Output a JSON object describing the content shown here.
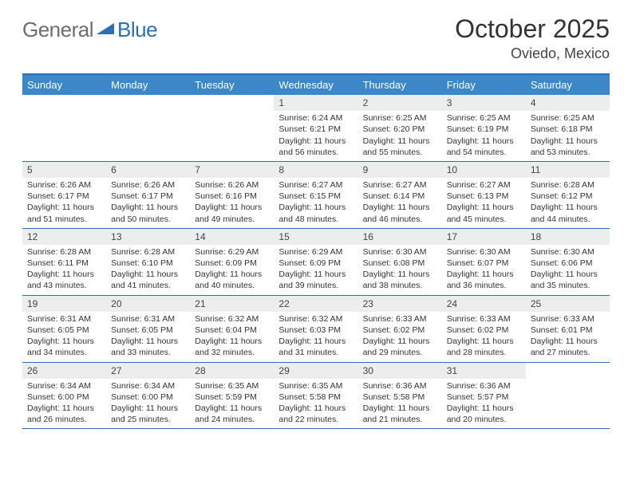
{
  "logo": {
    "text1": "General",
    "text2": "Blue"
  },
  "title": "October 2025",
  "location": "Oviedo, Mexico",
  "colors": {
    "header_bg": "#3b87c8",
    "border": "#2d6fb7",
    "daynum_bg": "#eceded",
    "logo_gray": "#6d6d6d",
    "logo_blue": "#2d6fb7"
  },
  "day_names": [
    "Sunday",
    "Monday",
    "Tuesday",
    "Wednesday",
    "Thursday",
    "Friday",
    "Saturday"
  ],
  "weeks": [
    [
      {
        "n": "",
        "l1": "",
        "l2": "",
        "l3": ""
      },
      {
        "n": "",
        "l1": "",
        "l2": "",
        "l3": ""
      },
      {
        "n": "",
        "l1": "",
        "l2": "",
        "l3": ""
      },
      {
        "n": "1",
        "l1": "Sunrise: 6:24 AM",
        "l2": "Sunset: 6:21 PM",
        "l3": "Daylight: 11 hours and 56 minutes."
      },
      {
        "n": "2",
        "l1": "Sunrise: 6:25 AM",
        "l2": "Sunset: 6:20 PM",
        "l3": "Daylight: 11 hours and 55 minutes."
      },
      {
        "n": "3",
        "l1": "Sunrise: 6:25 AM",
        "l2": "Sunset: 6:19 PM",
        "l3": "Daylight: 11 hours and 54 minutes."
      },
      {
        "n": "4",
        "l1": "Sunrise: 6:25 AM",
        "l2": "Sunset: 6:18 PM",
        "l3": "Daylight: 11 hours and 53 minutes."
      }
    ],
    [
      {
        "n": "5",
        "l1": "Sunrise: 6:26 AM",
        "l2": "Sunset: 6:17 PM",
        "l3": "Daylight: 11 hours and 51 minutes."
      },
      {
        "n": "6",
        "l1": "Sunrise: 6:26 AM",
        "l2": "Sunset: 6:17 PM",
        "l3": "Daylight: 11 hours and 50 minutes."
      },
      {
        "n": "7",
        "l1": "Sunrise: 6:26 AM",
        "l2": "Sunset: 6:16 PM",
        "l3": "Daylight: 11 hours and 49 minutes."
      },
      {
        "n": "8",
        "l1": "Sunrise: 6:27 AM",
        "l2": "Sunset: 6:15 PM",
        "l3": "Daylight: 11 hours and 48 minutes."
      },
      {
        "n": "9",
        "l1": "Sunrise: 6:27 AM",
        "l2": "Sunset: 6:14 PM",
        "l3": "Daylight: 11 hours and 46 minutes."
      },
      {
        "n": "10",
        "l1": "Sunrise: 6:27 AM",
        "l2": "Sunset: 6:13 PM",
        "l3": "Daylight: 11 hours and 45 minutes."
      },
      {
        "n": "11",
        "l1": "Sunrise: 6:28 AM",
        "l2": "Sunset: 6:12 PM",
        "l3": "Daylight: 11 hours and 44 minutes."
      }
    ],
    [
      {
        "n": "12",
        "l1": "Sunrise: 6:28 AM",
        "l2": "Sunset: 6:11 PM",
        "l3": "Daylight: 11 hours and 43 minutes."
      },
      {
        "n": "13",
        "l1": "Sunrise: 6:28 AM",
        "l2": "Sunset: 6:10 PM",
        "l3": "Daylight: 11 hours and 41 minutes."
      },
      {
        "n": "14",
        "l1": "Sunrise: 6:29 AM",
        "l2": "Sunset: 6:09 PM",
        "l3": "Daylight: 11 hours and 40 minutes."
      },
      {
        "n": "15",
        "l1": "Sunrise: 6:29 AM",
        "l2": "Sunset: 6:09 PM",
        "l3": "Daylight: 11 hours and 39 minutes."
      },
      {
        "n": "16",
        "l1": "Sunrise: 6:30 AM",
        "l2": "Sunset: 6:08 PM",
        "l3": "Daylight: 11 hours and 38 minutes."
      },
      {
        "n": "17",
        "l1": "Sunrise: 6:30 AM",
        "l2": "Sunset: 6:07 PM",
        "l3": "Daylight: 11 hours and 36 minutes."
      },
      {
        "n": "18",
        "l1": "Sunrise: 6:30 AM",
        "l2": "Sunset: 6:06 PM",
        "l3": "Daylight: 11 hours and 35 minutes."
      }
    ],
    [
      {
        "n": "19",
        "l1": "Sunrise: 6:31 AM",
        "l2": "Sunset: 6:05 PM",
        "l3": "Daylight: 11 hours and 34 minutes."
      },
      {
        "n": "20",
        "l1": "Sunrise: 6:31 AM",
        "l2": "Sunset: 6:05 PM",
        "l3": "Daylight: 11 hours and 33 minutes."
      },
      {
        "n": "21",
        "l1": "Sunrise: 6:32 AM",
        "l2": "Sunset: 6:04 PM",
        "l3": "Daylight: 11 hours and 32 minutes."
      },
      {
        "n": "22",
        "l1": "Sunrise: 6:32 AM",
        "l2": "Sunset: 6:03 PM",
        "l3": "Daylight: 11 hours and 31 minutes."
      },
      {
        "n": "23",
        "l1": "Sunrise: 6:33 AM",
        "l2": "Sunset: 6:02 PM",
        "l3": "Daylight: 11 hours and 29 minutes."
      },
      {
        "n": "24",
        "l1": "Sunrise: 6:33 AM",
        "l2": "Sunset: 6:02 PM",
        "l3": "Daylight: 11 hours and 28 minutes."
      },
      {
        "n": "25",
        "l1": "Sunrise: 6:33 AM",
        "l2": "Sunset: 6:01 PM",
        "l3": "Daylight: 11 hours and 27 minutes."
      }
    ],
    [
      {
        "n": "26",
        "l1": "Sunrise: 6:34 AM",
        "l2": "Sunset: 6:00 PM",
        "l3": "Daylight: 11 hours and 26 minutes."
      },
      {
        "n": "27",
        "l1": "Sunrise: 6:34 AM",
        "l2": "Sunset: 6:00 PM",
        "l3": "Daylight: 11 hours and 25 minutes."
      },
      {
        "n": "28",
        "l1": "Sunrise: 6:35 AM",
        "l2": "Sunset: 5:59 PM",
        "l3": "Daylight: 11 hours and 24 minutes."
      },
      {
        "n": "29",
        "l1": "Sunrise: 6:35 AM",
        "l2": "Sunset: 5:58 PM",
        "l3": "Daylight: 11 hours and 22 minutes."
      },
      {
        "n": "30",
        "l1": "Sunrise: 6:36 AM",
        "l2": "Sunset: 5:58 PM",
        "l3": "Daylight: 11 hours and 21 minutes."
      },
      {
        "n": "31",
        "l1": "Sunrise: 6:36 AM",
        "l2": "Sunset: 5:57 PM",
        "l3": "Daylight: 11 hours and 20 minutes."
      },
      {
        "n": "",
        "l1": "",
        "l2": "",
        "l3": ""
      }
    ]
  ]
}
